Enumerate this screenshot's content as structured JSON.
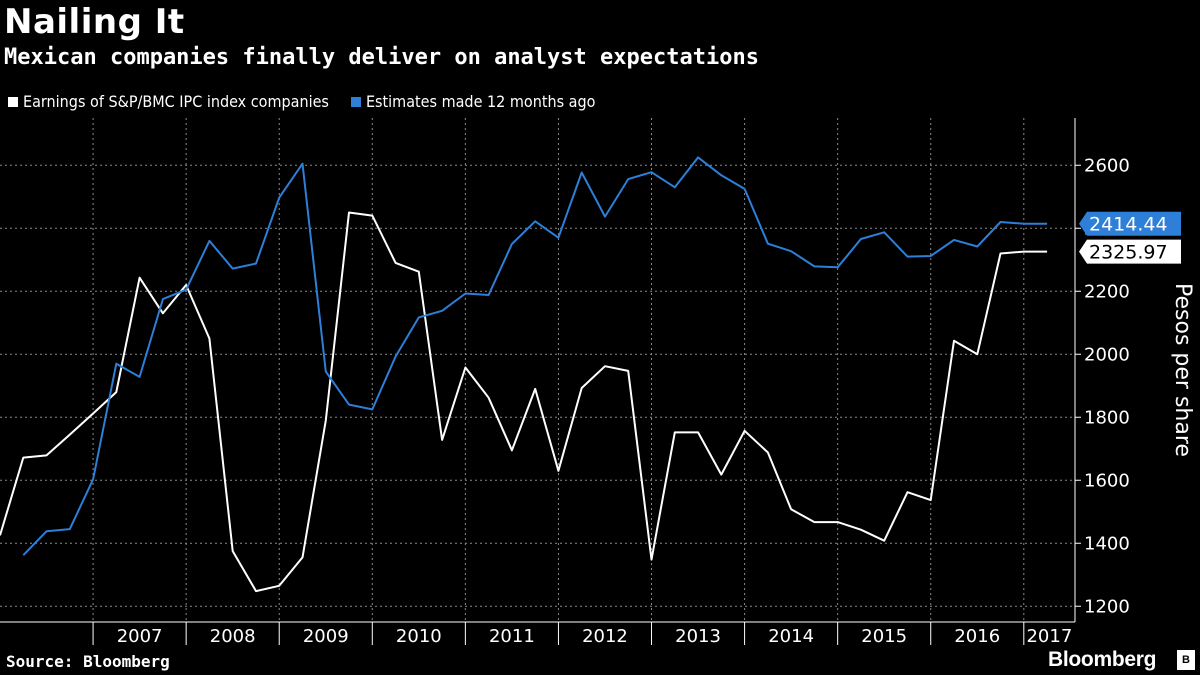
{
  "header": {
    "title": "Nailing It",
    "subtitle": "Mexican companies finally deliver on analyst expectations"
  },
  "footer": {
    "source": "Source: Bloomberg",
    "brand": "Bloomberg",
    "brand_mark": "B"
  },
  "colors": {
    "earnings": "#ffffff",
    "estimates": "#2d7fd8",
    "grid": "#8a8a8a",
    "background": "#000000"
  },
  "chart_data": {
    "type": "line",
    "title": "Nailing It",
    "subtitle": "Mexican companies finally deliver on analyst expectations",
    "ylabel": "Pesos per share",
    "xlabel": "",
    "ylim": [
      1150,
      2750
    ],
    "yticks": [
      1200,
      1400,
      1600,
      1800,
      2000,
      2200,
      2400,
      2600
    ],
    "xlim": [
      2006.0,
      2017.55
    ],
    "xticks": [
      "2007",
      "2008",
      "2009",
      "2010",
      "2011",
      "2012",
      "2013",
      "2014",
      "2015",
      "2016",
      "2017"
    ],
    "legend_position": "top-left",
    "grid": true,
    "series": [
      {
        "name": "Earnings of S&P/BMC IPC index companies",
        "color": "#ffffff",
        "x": [
          2006.0,
          2006.25,
          2006.5,
          2006.75,
          2007.0,
          2007.25,
          2007.5,
          2007.75,
          2008.0,
          2008.25,
          2008.5,
          2008.75,
          2009.0,
          2009.25,
          2009.5,
          2009.75,
          2010.0,
          2010.25,
          2010.5,
          2010.75,
          2011.0,
          2011.25,
          2011.5,
          2011.75,
          2012.0,
          2012.25,
          2012.5,
          2012.75,
          2013.0,
          2013.25,
          2013.5,
          2013.75,
          2014.0,
          2014.25,
          2014.5,
          2014.75,
          2015.0,
          2015.25,
          2015.5,
          2015.75,
          2016.0,
          2016.25,
          2016.5,
          2016.75,
          2017.0,
          2017.25
        ],
        "values": [
          1425,
          1672,
          1679,
          1745,
          1812,
          1880,
          2243,
          2130,
          2220,
          2050,
          1375,
          1248,
          1265,
          1355,
          1790,
          2450,
          2440,
          2290,
          2262,
          1728,
          1958,
          1862,
          1695,
          1890,
          1630,
          1893,
          1962,
          1947,
          1348,
          1752,
          1752,
          1618,
          1757,
          1688,
          1508,
          1467,
          1467,
          1443,
          1408,
          1562,
          1537,
          2043,
          2000,
          2320,
          2325.97,
          2325.97
        ]
      },
      {
        "name": "Estimates made 12 months ago",
        "color": "#2d7fd8",
        "x": [
          2006.25,
          2006.5,
          2006.75,
          2007.0,
          2007.25,
          2007.5,
          2007.75,
          2008.0,
          2008.25,
          2008.5,
          2008.75,
          2009.0,
          2009.25,
          2009.5,
          2009.75,
          2010.0,
          2010.25,
          2010.5,
          2010.75,
          2011.0,
          2011.25,
          2011.5,
          2011.75,
          2012.0,
          2012.25,
          2012.5,
          2012.75,
          2013.0,
          2013.25,
          2013.5,
          2013.75,
          2014.0,
          2014.25,
          2014.5,
          2014.75,
          2015.0,
          2015.25,
          2015.5,
          2015.75,
          2016.0,
          2016.25,
          2016.5,
          2016.75,
          2017.0,
          2017.25
        ],
        "values": [
          1362,
          1438,
          1445,
          1603,
          1970,
          1928,
          2175,
          2205,
          2360,
          2272,
          2288,
          2497,
          2605,
          1945,
          1840,
          1825,
          1993,
          2117,
          2138,
          2193,
          2188,
          2350,
          2422,
          2370,
          2577,
          2437,
          2556,
          2578,
          2530,
          2625,
          2568,
          2525,
          2351,
          2327,
          2279,
          2276,
          2366,
          2387,
          2310,
          2312,
          2363,
          2342,
          2420,
          2414.44,
          2414.44
        ]
      }
    ],
    "last_value_labels": [
      {
        "series": "Estimates made 12 months ago",
        "text": "2414.44"
      },
      {
        "series": "Earnings of S&P/BMC IPC index companies",
        "text": "2325.97"
      }
    ]
  }
}
